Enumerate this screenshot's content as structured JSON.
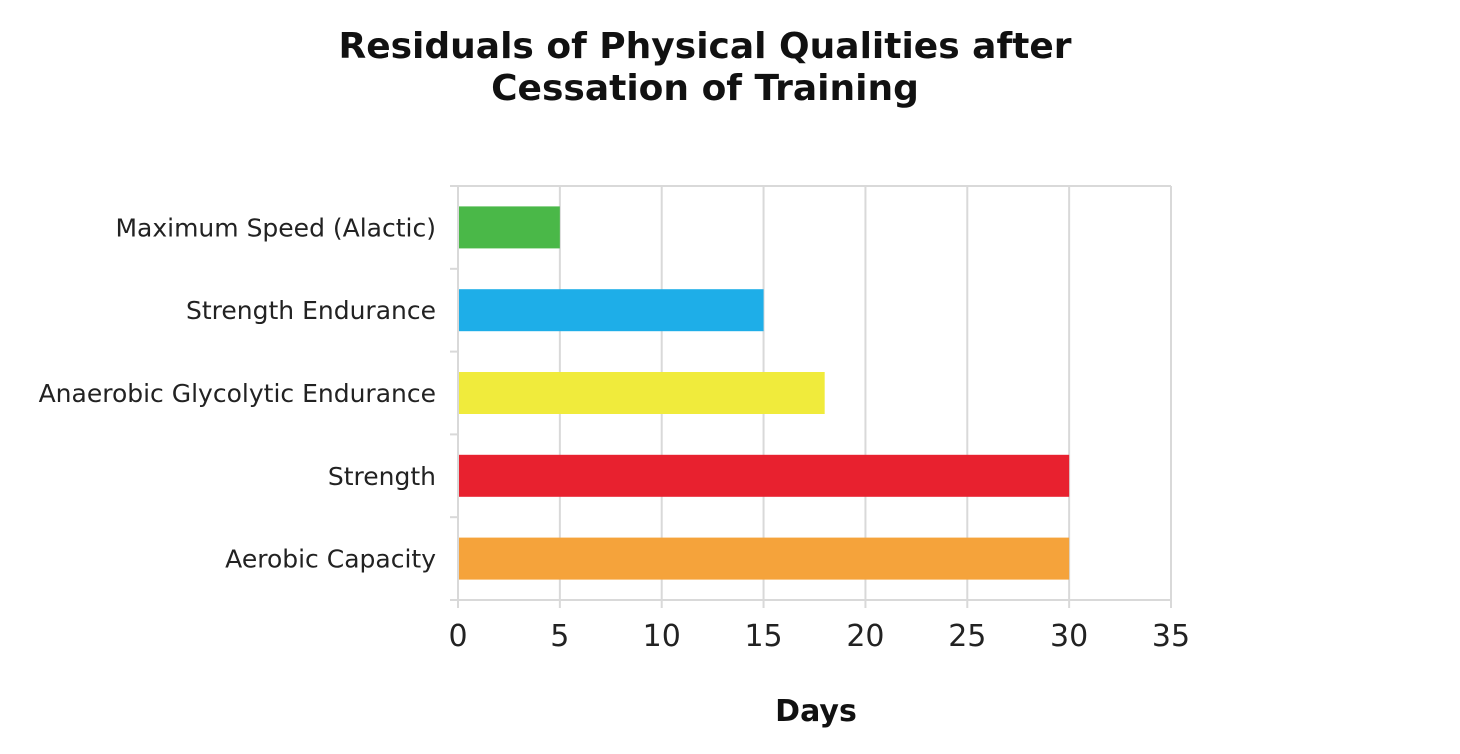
{
  "chart_data": {
    "type": "bar",
    "orientation": "horizontal",
    "title_lines": [
      "Residuals of Physical Qualities after",
      "Cessation of Training"
    ],
    "categories": [
      "Maximum Speed (Alactic)",
      "Strength Endurance",
      "Anaerobic Glycolytic Endurance",
      "Strength",
      "Aerobic Capacity"
    ],
    "values": [
      5,
      15,
      18,
      30,
      30
    ],
    "colors": [
      "#4ab848",
      "#1eaee8",
      "#f0eb3c",
      "#e8212f",
      "#f5a33b"
    ],
    "xlabel": "Days",
    "ylabel": "",
    "xlim": [
      0,
      35
    ],
    "xticks": [
      0,
      5,
      10,
      15,
      20,
      25,
      30,
      35
    ],
    "grid": true,
    "legend": "none"
  }
}
